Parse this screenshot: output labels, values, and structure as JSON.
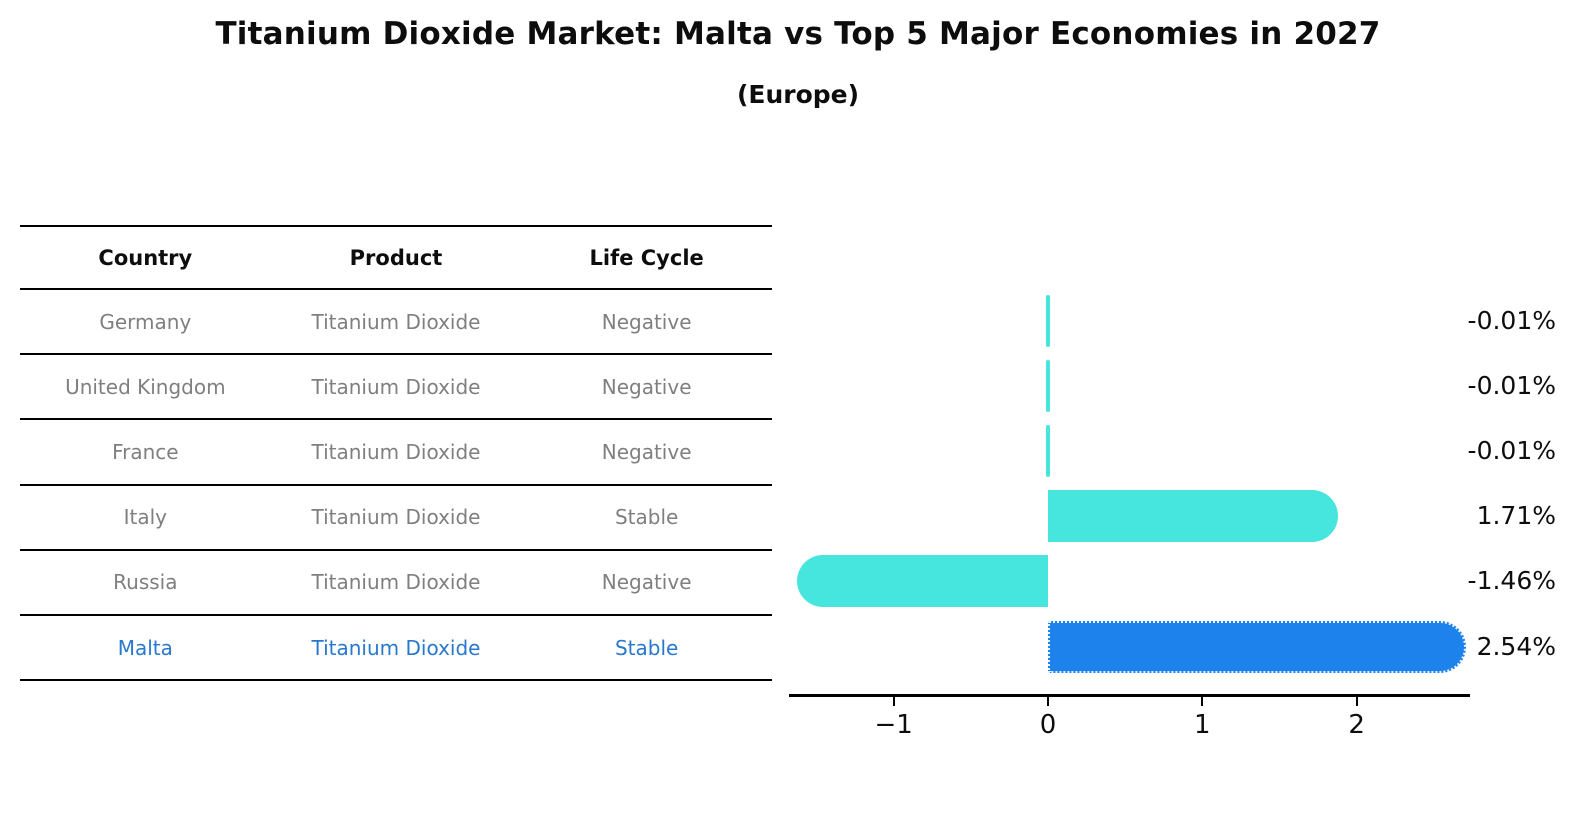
{
  "header": {
    "title": "Titanium Dioxide Market: Malta vs Top 5 Major Economies in 2027",
    "subtitle": "(Europe)"
  },
  "table": {
    "columns": [
      "Country",
      "Product",
      "Life Cycle"
    ],
    "rows": [
      {
        "country": "Germany",
        "product": "Titanium Dioxide",
        "life_cycle": "Negative",
        "highlighted": false
      },
      {
        "country": "United Kingdom",
        "product": "Titanium Dioxide",
        "life_cycle": "Negative",
        "highlighted": false
      },
      {
        "country": "France",
        "product": "Titanium Dioxide",
        "life_cycle": "Negative",
        "highlighted": false
      },
      {
        "country": "Italy",
        "product": "Titanium Dioxide",
        "life_cycle": "Stable",
        "highlighted": false
      },
      {
        "country": "Russia",
        "product": "Titanium Dioxide",
        "life_cycle": "Negative",
        "highlighted": false
      },
      {
        "country": "Malta",
        "product": "Titanium Dioxide",
        "life_cycle": "Stable",
        "highlighted": true
      }
    ]
  },
  "chart_data": {
    "type": "bar",
    "orientation": "horizontal",
    "title": "Titanium Dioxide Market: Malta vs Top 5 Major Economies in 2027",
    "subtitle": "(Europe)",
    "categories": [
      "Germany",
      "United Kingdom",
      "France",
      "Italy",
      "Russia",
      "Malta"
    ],
    "values": [
      -0.01,
      -0.01,
      -0.01,
      1.71,
      -1.46,
      2.54
    ],
    "value_labels": [
      "-0.01%",
      "-0.01%",
      "-0.01%",
      "1.71%",
      "-1.46%",
      "2.54%"
    ],
    "xlabel": "",
    "ylabel": "",
    "xlim": [
      -1.67,
      2.76
    ],
    "x_ticks": [
      -1,
      0,
      1,
      2
    ],
    "x_tick_labels": [
      "−1",
      "0",
      "1",
      "2"
    ],
    "grid": false,
    "legend": false,
    "highlighted_category": "Malta"
  },
  "colors": {
    "bar_default": "#46e6df",
    "bar_highlight": "#1e82ec",
    "table_text": "#7f7f7f",
    "highlight_text": "#2878cd",
    "axis": "#000000"
  }
}
